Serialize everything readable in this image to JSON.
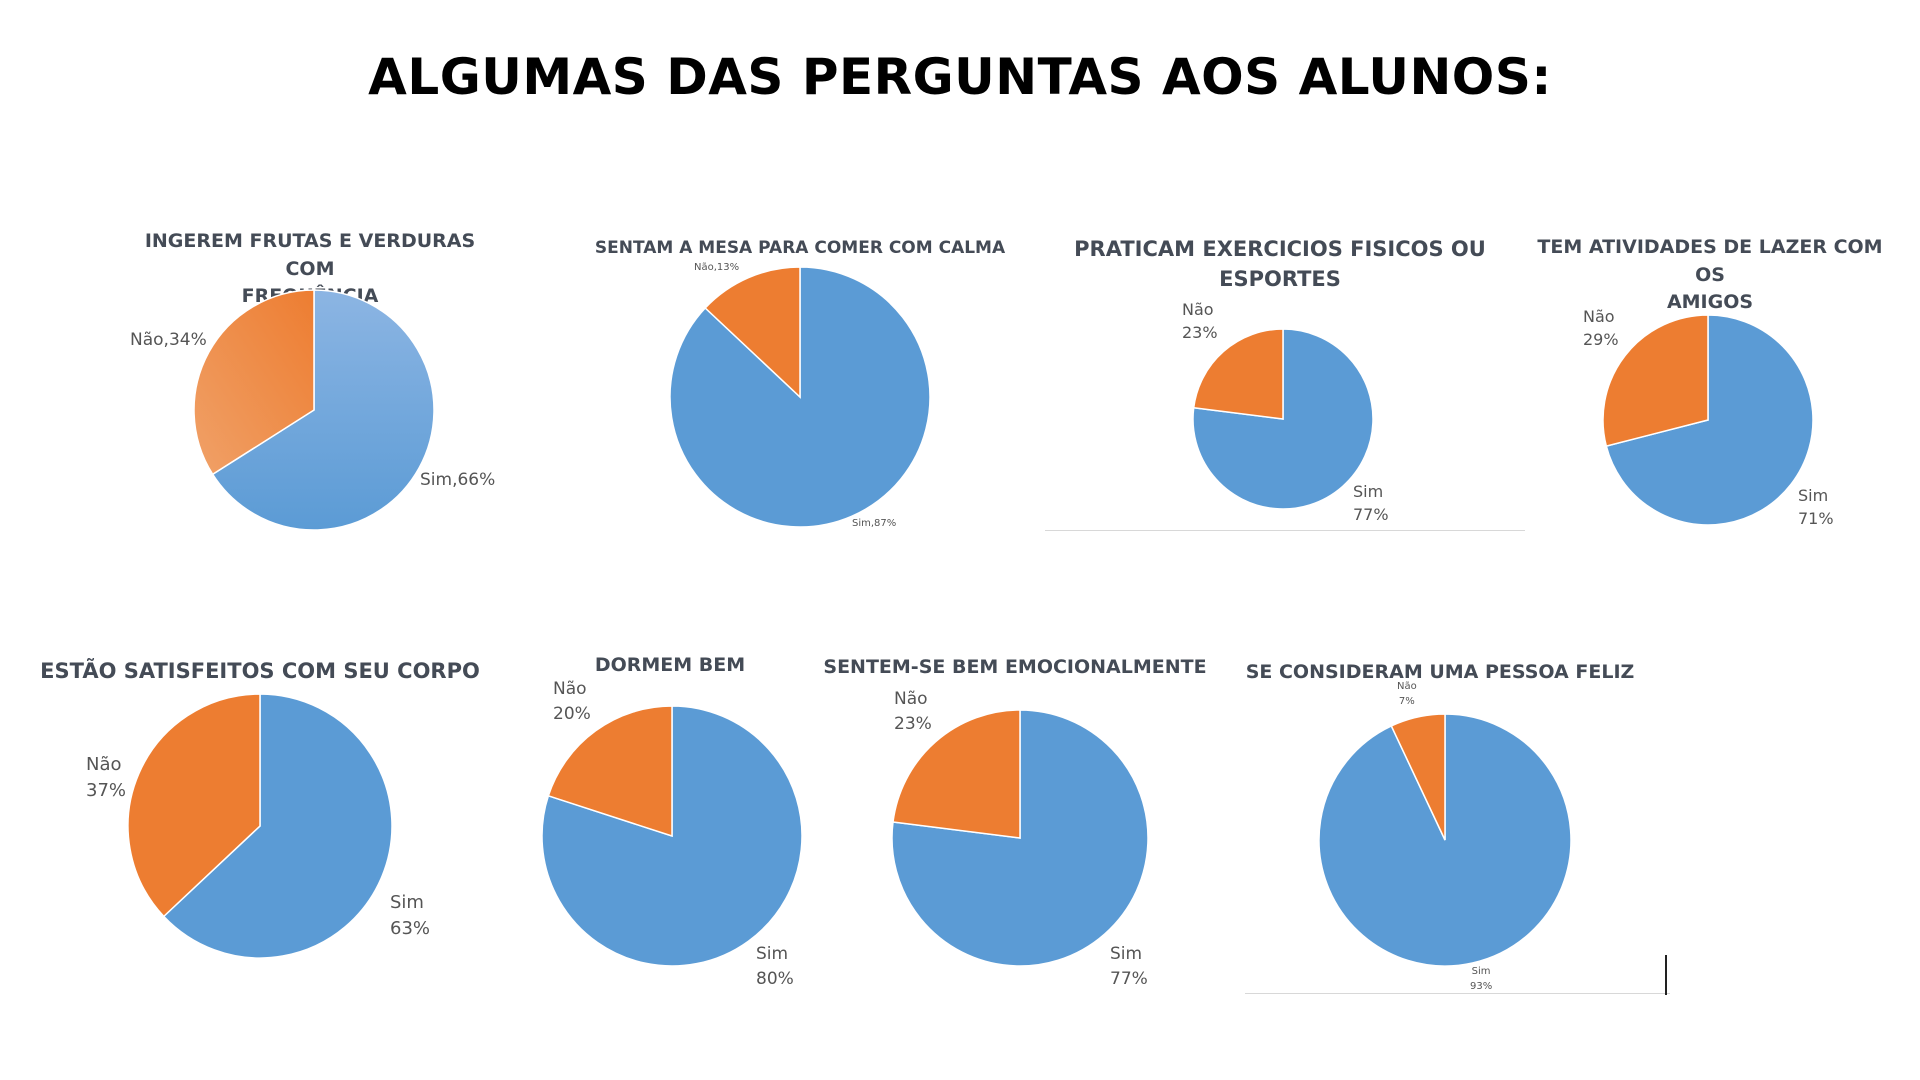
{
  "page": {
    "title": "ALGUMAS DAS PERGUNTAS AOS ALUNOS:"
  },
  "colors": {
    "sim": "#5b9bd5",
    "nao": "#ed7d31",
    "sim_light": "#8cb5e3",
    "nao_light": "#f0a168"
  },
  "chart_data": [
    {
      "type": "pie",
      "title": "INGEREM FRUTAS E VERDURAS COM FREQUÊNCIA",
      "title_lines": [
        "INGEREM FRUTAS E VERDURAS COM",
        "FREQUÊNCIA"
      ],
      "categories": [
        "Sim",
        "Não"
      ],
      "values": [
        66,
        34
      ],
      "labels": [
        [
          "Sim,66%"
        ],
        [
          "Não,34%"
        ]
      ]
    },
    {
      "type": "pie",
      "title": "SENTAM A MESA PARA COMER COM CALMA",
      "title_lines": [
        "SENTAM A MESA PARA COMER COM CALMA"
      ],
      "categories": [
        "Sim",
        "Não"
      ],
      "values": [
        87,
        13
      ],
      "labels": [
        [
          "Sim,87%"
        ],
        [
          "Não,13%"
        ]
      ]
    },
    {
      "type": "pie",
      "title": "PRATICAM EXERCICIOS FISICOS OU ESPORTES",
      "title_lines": [
        "PRATICAM EXERCICIOS FISICOS OU",
        "ESPORTES"
      ],
      "categories": [
        "Sim",
        "Não"
      ],
      "values": [
        77,
        23
      ],
      "labels": [
        [
          "Sim",
          "77%"
        ],
        [
          "Não",
          "23%"
        ]
      ]
    },
    {
      "type": "pie",
      "title": "TEM ATIVIDADES DE LAZER COM OS AMIGOS",
      "title_lines": [
        "TEM ATIVIDADES DE LAZER COM OS",
        "AMIGOS"
      ],
      "categories": [
        "Sim",
        "Não"
      ],
      "values": [
        71,
        29
      ],
      "labels": [
        [
          "Sim",
          "71%"
        ],
        [
          "Não",
          "29%"
        ]
      ]
    },
    {
      "type": "pie",
      "title": "ESTÃO SATISFEITOS COM SEU CORPO",
      "title_lines": [
        "ESTÃO SATISFEITOS COM SEU CORPO"
      ],
      "categories": [
        "Sim",
        "Não"
      ],
      "values": [
        63,
        37
      ],
      "labels": [
        [
          "Sim",
          "63%"
        ],
        [
          "Não",
          "37%"
        ]
      ]
    },
    {
      "type": "pie",
      "title": "DORMEM BEM",
      "title_lines": [
        "DORMEM BEM"
      ],
      "categories": [
        "Sim",
        "Não"
      ],
      "values": [
        80,
        20
      ],
      "labels": [
        [
          "Sim",
          "80%"
        ],
        [
          "Não",
          "20%"
        ]
      ]
    },
    {
      "type": "pie",
      "title": "SENTEM-SE BEM EMOCIONALMENTE",
      "title_lines": [
        "SENTEM-SE BEM EMOCIONALMENTE"
      ],
      "categories": [
        "Sim",
        "Não"
      ],
      "values": [
        77,
        23
      ],
      "labels": [
        [
          "Sim",
          "77%"
        ],
        [
          "Não",
          "23%"
        ]
      ]
    },
    {
      "type": "pie",
      "title": "SE CONSIDERAM UMA PESSOA FELIZ",
      "title_lines": [
        "SE CONSIDERAM UMA PESSOA FELIZ"
      ],
      "categories": [
        "Sim",
        "Não"
      ],
      "values": [
        93,
        7
      ],
      "labels": [
        [
          "Sim",
          "93%"
        ],
        [
          "Não",
          "7%"
        ]
      ]
    }
  ]
}
